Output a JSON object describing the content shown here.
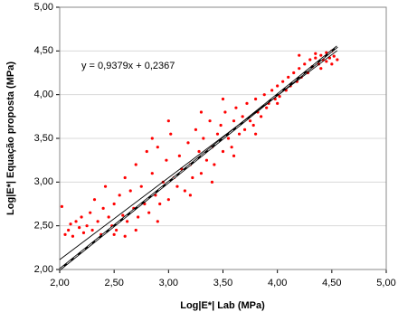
{
  "chart_data": {
    "type": "scatter",
    "xlabel": "Log|E*| Lab (MPa)",
    "ylabel": "Log|E*| Equação proposta (MPa)",
    "trendline": {
      "label": "y = 0,9379x + 0,2367",
      "slope": 0.9379,
      "intercept": 0.2367
    },
    "equality_line": true,
    "grid": true,
    "xlim": [
      2,
      5
    ],
    "ylim": [
      2,
      5
    ],
    "xticks": [
      {
        "value": 2,
        "label": "2,00"
      },
      {
        "value": 2.5,
        "label": "2,50"
      },
      {
        "value": 3,
        "label": "3,00"
      },
      {
        "value": 3.5,
        "label": "3,50"
      },
      {
        "value": 4,
        "label": "4,00"
      },
      {
        "value": 4.5,
        "label": "4,50"
      },
      {
        "value": 5,
        "label": "5,00"
      }
    ],
    "yticks": [
      {
        "value": 2,
        "label": "2,00"
      },
      {
        "value": 2.5,
        "label": "2,50"
      },
      {
        "value": 3,
        "label": "3,00"
      },
      {
        "value": 3.5,
        "label": "3,50"
      },
      {
        "value": 4,
        "label": "4,00"
      },
      {
        "value": 4.5,
        "label": "4,50"
      },
      {
        "value": 5,
        "label": "5,00"
      }
    ],
    "color": "#ff0000",
    "x": [
      2.02,
      2.05,
      2.08,
      2.1,
      2.12,
      2.15,
      2.18,
      2.2,
      2.22,
      2.25,
      2.28,
      2.3,
      2.32,
      2.35,
      2.38,
      2.4,
      2.42,
      2.45,
      2.48,
      2.5,
      2.52,
      2.55,
      2.58,
      2.6,
      2.62,
      2.65,
      2.68,
      2.7,
      2.72,
      2.75,
      2.78,
      2.8,
      2.82,
      2.85,
      2.88,
      2.9,
      2.92,
      2.95,
      2.98,
      3.0,
      3.02,
      3.05,
      3.08,
      3.1,
      3.12,
      3.15,
      3.18,
      3.2,
      3.22,
      3.25,
      3.28,
      3.3,
      3.32,
      3.35,
      3.38,
      3.4,
      3.42,
      3.45,
      3.48,
      3.5,
      3.52,
      3.55,
      3.58,
      3.6,
      3.62,
      3.65,
      3.68,
      3.7,
      3.72,
      3.75,
      3.78,
      3.8,
      3.82,
      3.85,
      3.88,
      3.9,
      3.92,
      3.95,
      3.98,
      4.0,
      4.02,
      4.05,
      4.08,
      4.1,
      4.12,
      4.15,
      4.18,
      4.2,
      4.22,
      4.25,
      4.28,
      4.3,
      4.32,
      4.35,
      4.38,
      4.4,
      4.42,
      4.45,
      4.48,
      4.5,
      4.52,
      4.55,
      4.4,
      4.35,
      4.45,
      4.5,
      3.6,
      3.4,
      3.2,
      2.9,
      2.7,
      2.5,
      3.0,
      2.85,
      3.5,
      3.3,
      2.6,
      3.8,
      4.0,
      4.2
    ],
    "y": [
      2.72,
      2.4,
      2.45,
      2.52,
      2.38,
      2.55,
      2.48,
      2.6,
      2.42,
      2.5,
      2.65,
      2.45,
      2.8,
      2.55,
      2.4,
      2.7,
      2.95,
      2.6,
      2.5,
      2.75,
      2.45,
      2.85,
      2.62,
      3.05,
      2.55,
      2.9,
      2.7,
      3.2,
      2.6,
      2.95,
      2.75,
      3.35,
      2.65,
      3.1,
      2.85,
      3.4,
      2.75,
      3.0,
      3.25,
      2.8,
      3.55,
      3.05,
      2.95,
      3.3,
      3.15,
      2.9,
      3.45,
      3.2,
      3.05,
      3.6,
      3.35,
      3.1,
      3.5,
      3.25,
      3.7,
      3.4,
      3.2,
      3.55,
      3.65,
      3.35,
      3.8,
      3.5,
      3.4,
      3.7,
      3.85,
      3.55,
      3.75,
      3.6,
      3.9,
      3.7,
      3.65,
      3.95,
      3.8,
      3.75,
      4.0,
      3.85,
      3.9,
      4.05,
      3.95,
      4.1,
      3.98,
      4.15,
      4.05,
      4.2,
      4.1,
      4.25,
      4.15,
      4.3,
      4.2,
      4.35,
      4.25,
      4.4,
      4.32,
      4.42,
      4.35,
      4.45,
      4.4,
      4.48,
      4.42,
      4.5,
      4.44,
      4.4,
      4.3,
      4.47,
      4.38,
      4.35,
      3.3,
      3.0,
      2.85,
      2.55,
      2.45,
      2.4,
      3.7,
      3.5,
      3.95,
      3.8,
      2.38,
      3.55,
      3.9,
      4.45
    ]
  }
}
